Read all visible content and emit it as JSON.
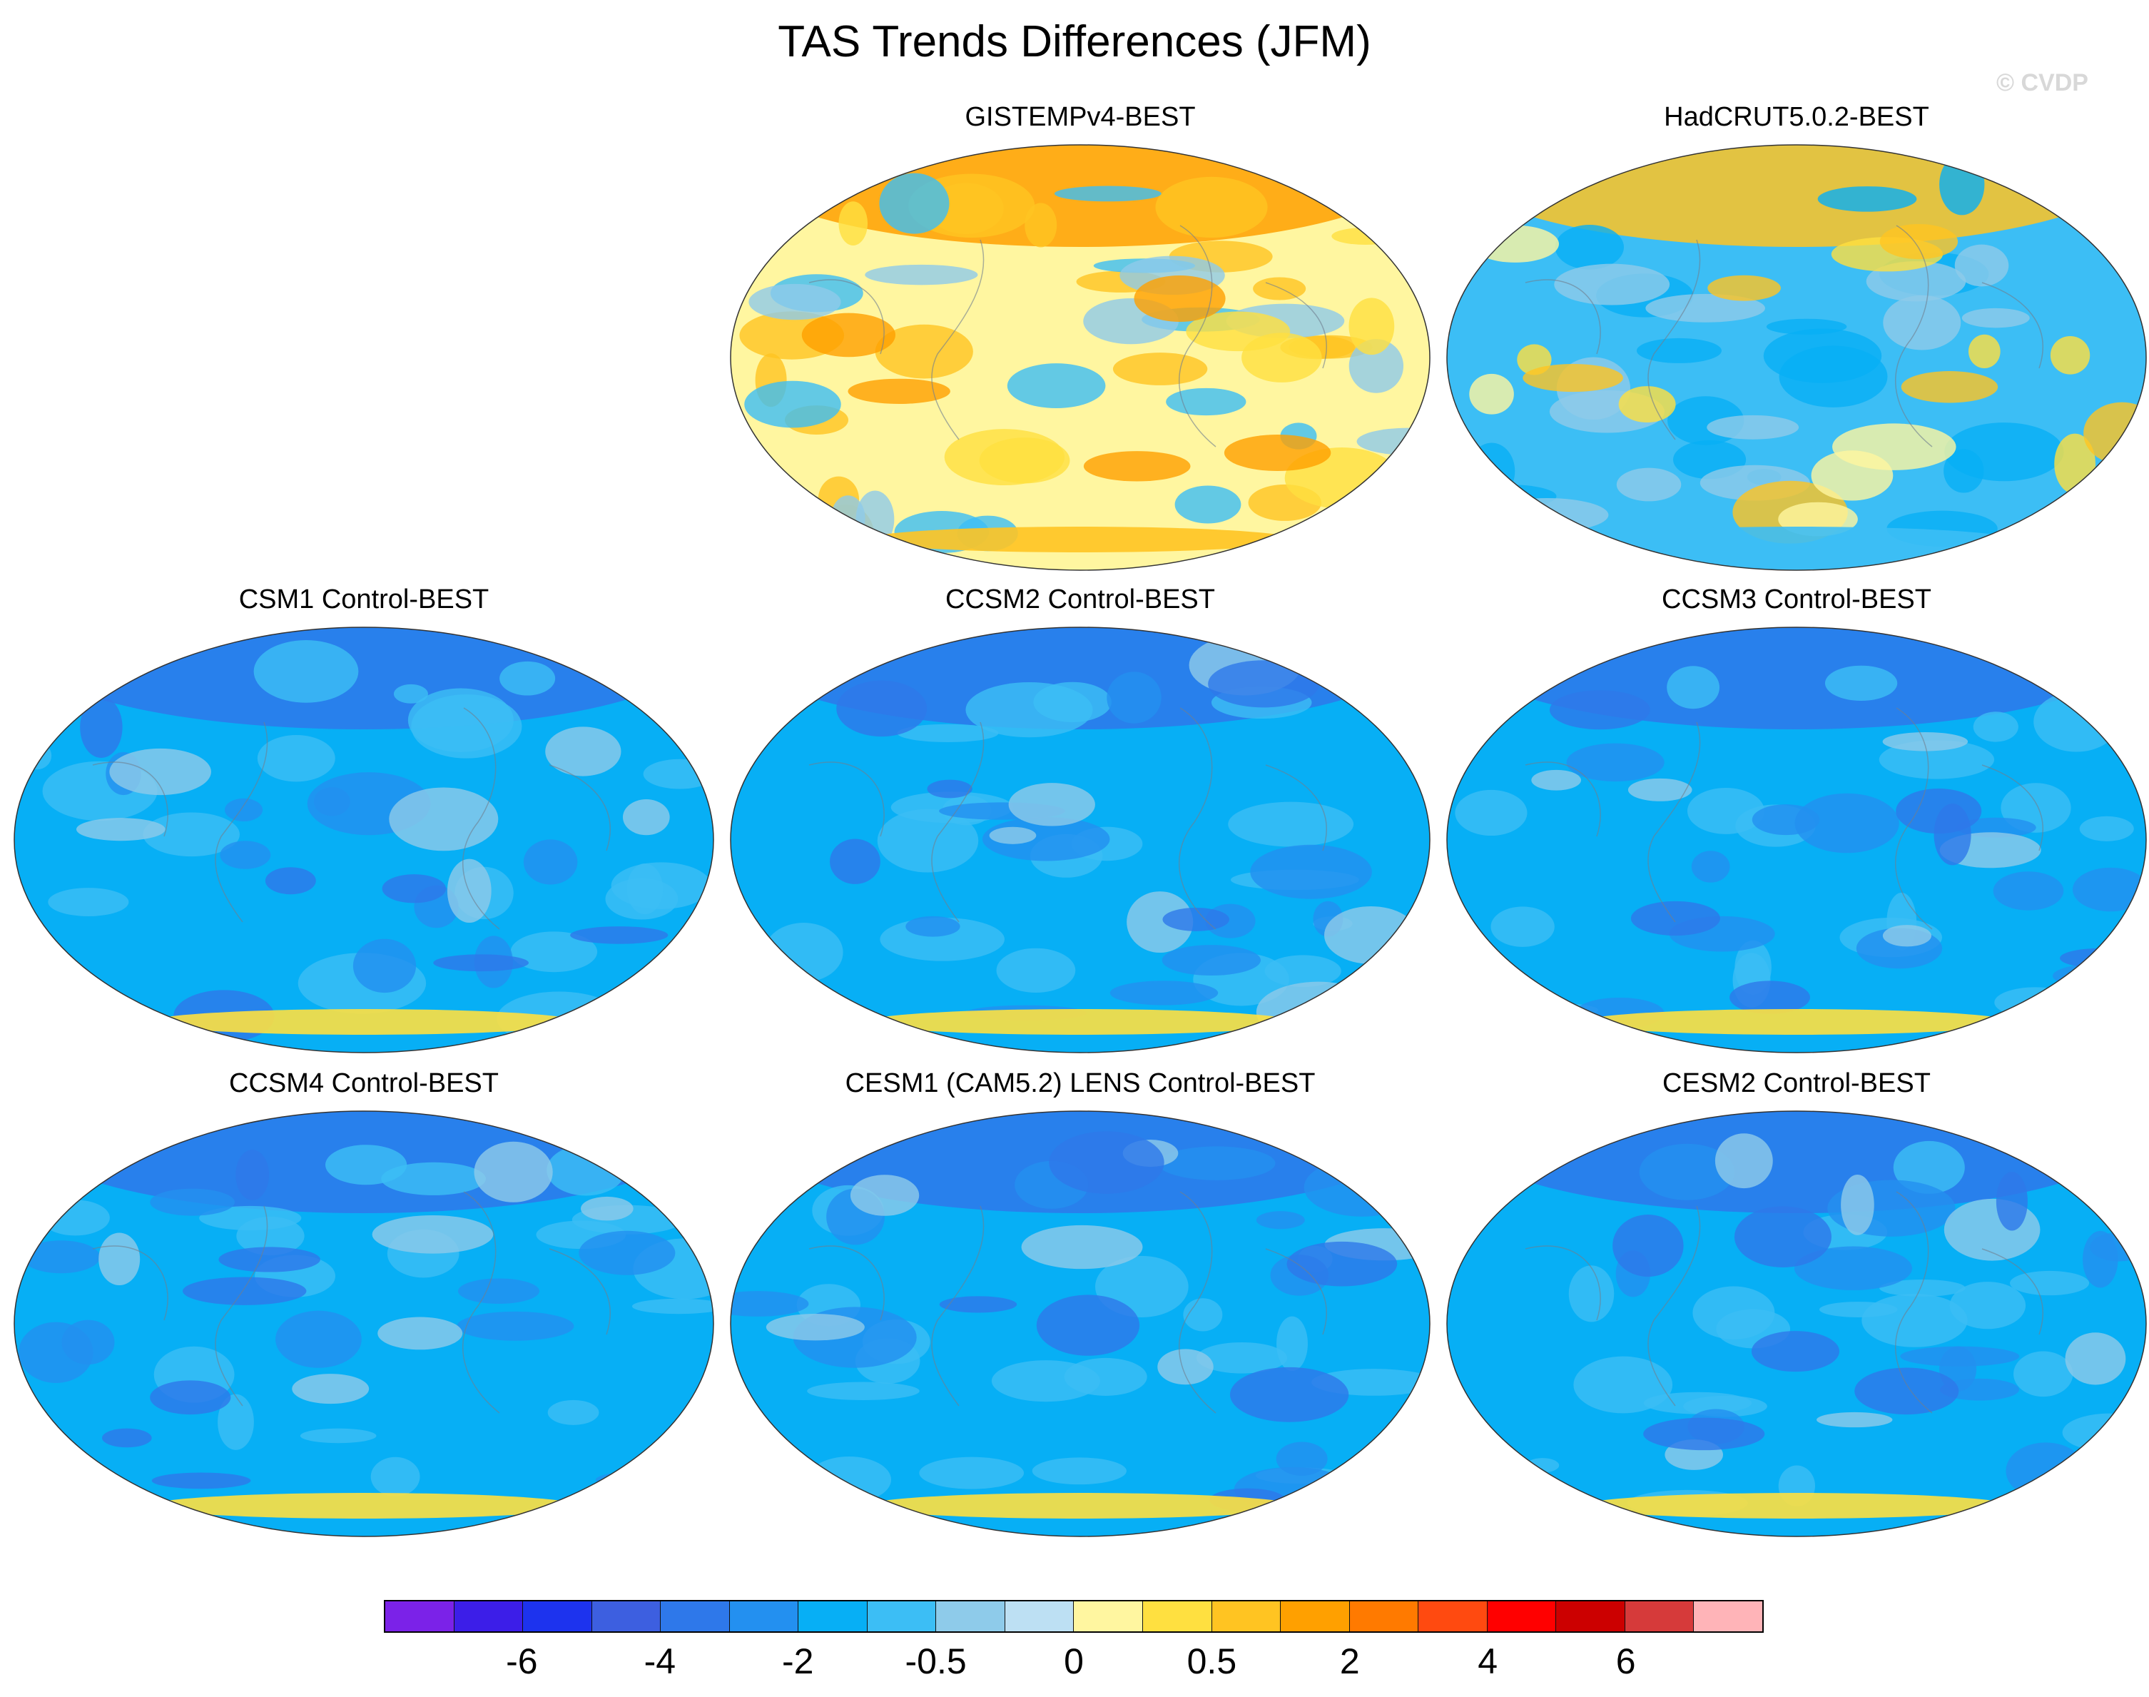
{
  "figure": {
    "title": "TAS Trends Differences (JFM)",
    "watermark": "© CVDP"
  },
  "panels": [
    {
      "title": "GISTEMPv4-BEST",
      "palette": "warm-mixed"
    },
    {
      "title": "HadCRUT5.0.2-BEST",
      "palette": "blue-warm"
    },
    {
      "title": "CSM1 Control-BEST",
      "palette": "blue"
    },
    {
      "title": "CCSM2 Control-BEST",
      "palette": "blue"
    },
    {
      "title": "CCSM3 Control-BEST",
      "palette": "blue"
    },
    {
      "title": "CCSM4 Control-BEST",
      "palette": "blue"
    },
    {
      "title": "CESM1 (CAM5.2) LENS Control-BEST",
      "palette": "blue"
    },
    {
      "title": "CESM2 Control-BEST",
      "palette": "blue"
    }
  ],
  "colorbar": {
    "colors": [
      "#7b22e8",
      "#3c1ee8",
      "#1d33ee",
      "#3d5fe0",
      "#2e78ea",
      "#2390f0",
      "#07aff5",
      "#3cbef5",
      "#8ecbea",
      "#bde0f3",
      "#fff6a0",
      "#ffe040",
      "#ffc422",
      "#ffa000",
      "#ff7a00",
      "#ff4a10",
      "#ff0000",
      "#cc0000",
      "#d63a3a",
      "#ffb4b8"
    ],
    "tick_labels": [
      {
        "label": "-6",
        "boundary": 2
      },
      {
        "label": "-4",
        "boundary": 4
      },
      {
        "label": "-2",
        "boundary": 6
      },
      {
        "label": "-0.5",
        "boundary": 8
      },
      {
        "label": "0",
        "boundary": 10
      },
      {
        "label": "0.5",
        "boundary": 12
      },
      {
        "label": "2",
        "boundary": 14
      },
      {
        "label": "4",
        "boundary": 16
      },
      {
        "label": "6",
        "boundary": 18
      }
    ]
  }
}
